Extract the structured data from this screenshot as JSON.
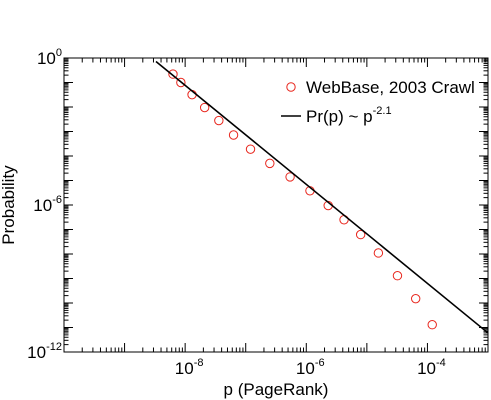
{
  "chart_data": {
    "type": "scatter",
    "title": "",
    "xlabel": "p (PageRank)",
    "ylabel": "Probability",
    "xscale": "log",
    "yscale": "log",
    "xlim": [
      1e-10,
      0.001
    ],
    "ylim": [
      1e-12,
      1
    ],
    "grid": false,
    "legend_position": "top-right",
    "x_tick_labels": [
      {
        "base": "10",
        "exp": "-8",
        "value": 1e-08
      },
      {
        "base": "10",
        "exp": "-6",
        "value": 1e-06
      },
      {
        "base": "10",
        "exp": "-4",
        "value": 0.0001
      }
    ],
    "y_tick_labels": [
      {
        "base": "10",
        "exp": "0",
        "value": 1
      },
      {
        "base": "10",
        "exp": "-6",
        "value": 1e-06
      },
      {
        "base": "10",
        "exp": "-12",
        "value": 1e-12
      }
    ],
    "series": [
      {
        "name": "WebBase, 2003 Crawl",
        "kind": "scatter",
        "marker": "open-circle",
        "color": "#e8261d",
        "x": [
          6.3e-09,
          8.5e-09,
          1.3e-08,
          2.1e-08,
          3.6e-08,
          6.3e-08,
          1.2e-07,
          2.5e-07,
          5.4e-07,
          1.15e-06,
          2.3e-06,
          4.2e-06,
          7.9e-06,
          1.55e-05,
          3.2e-05,
          6.4e-05,
          0.00012
        ],
        "y": [
          0.22,
          0.1,
          0.032,
          0.0095,
          0.0028,
          0.00072,
          0.00019,
          5e-05,
          1.4e-05,
          3.8e-06,
          9.5e-07,
          2.5e-07,
          6.2e-08,
          1.1e-08,
          1.3e-09,
          1.5e-10,
          1.3e-11
        ]
      },
      {
        "name": "Pr(p) ~ p",
        "name_exponent": "-2.1",
        "kind": "line",
        "color": "#000000",
        "x": [
          3.3e-09,
          0.001
        ],
        "y": [
          0.72,
          6e-12
        ]
      }
    ]
  }
}
